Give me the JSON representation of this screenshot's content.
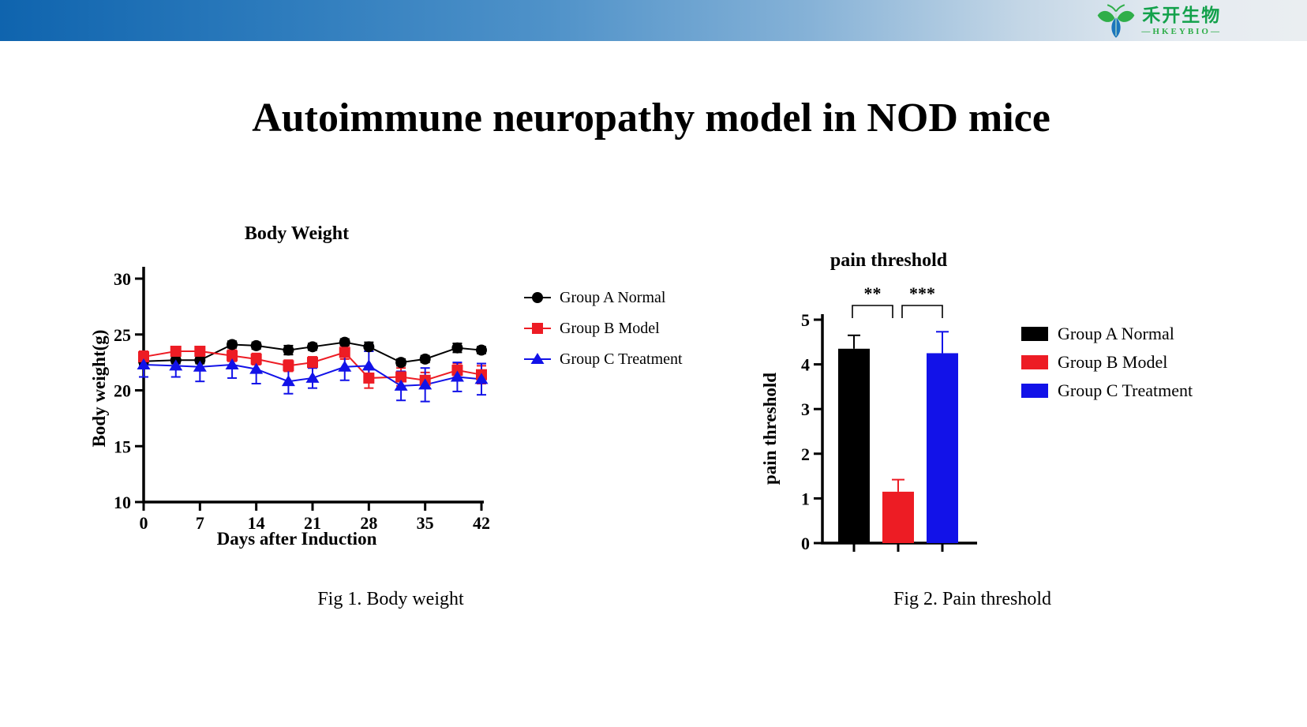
{
  "header": {
    "brand_cn": "禾开生物",
    "brand_en": "—HKEYBIO—"
  },
  "title": "Autoimmune neuropathy model in NOD mice",
  "captions": {
    "fig1": "Fig 1. Body weight",
    "fig2": "Fig 2. Pain threshold"
  },
  "colors": {
    "group_a": "#000000",
    "group_b": "#ed1c24",
    "group_c": "#1212e8",
    "logo_green": "#2fae49",
    "logo_blue": "#1b75bc",
    "header_gradient_start": "#0f64ae",
    "header_gradient_end": "#eaeef1"
  },
  "chart_data": [
    {
      "type": "line",
      "title": "Body Weight",
      "xlabel": "Days after Induction",
      "ylabel": "Body weight(g)",
      "xlim": [
        0,
        42
      ],
      "ylim": [
        10,
        30
      ],
      "xticks": [
        0,
        7,
        14,
        21,
        28,
        35,
        42
      ],
      "yticks": [
        10,
        15,
        20,
        25,
        30
      ],
      "grid": false,
      "legend_position": "right",
      "x": [
        0,
        4,
        7,
        11,
        14,
        18,
        21,
        25,
        28,
        32,
        35,
        39,
        42
      ],
      "series": [
        {
          "name": "Group A Normal",
          "color": "#000000",
          "marker": "circle",
          "values": [
            22.6,
            22.7,
            22.7,
            24.1,
            24.0,
            23.6,
            23.9,
            24.3,
            23.9,
            22.5,
            22.8,
            23.8,
            23.6
          ],
          "errors": [
            0.3,
            0.3,
            0.3,
            0.3,
            0.3,
            0.4,
            0.3,
            0.3,
            0.4,
            0.3,
            0.3,
            0.4,
            0.3
          ]
        },
        {
          "name": "Group B Model",
          "color": "#ed1c24",
          "marker": "square",
          "values": [
            23.0,
            23.5,
            23.5,
            23.1,
            22.8,
            22.2,
            22.5,
            23.4,
            21.1,
            21.2,
            20.9,
            21.8,
            21.4
          ],
          "errors": [
            0.5,
            0.4,
            0.4,
            0.5,
            0.5,
            0.5,
            0.5,
            0.6,
            0.9,
            0.8,
            0.7,
            0.6,
            0.8
          ]
        },
        {
          "name": "Group C Treatment",
          "color": "#1212e8",
          "marker": "triangle",
          "values": [
            22.3,
            22.2,
            22.1,
            22.3,
            21.9,
            20.8,
            21.1,
            22.1,
            22.2,
            20.4,
            20.5,
            21.2,
            21.0
          ],
          "errors": [
            1.1,
            1.0,
            1.3,
            1.2,
            1.3,
            1.1,
            0.9,
            1.2,
            1.3,
            1.3,
            1.5,
            1.3,
            1.4
          ]
        }
      ]
    },
    {
      "type": "bar",
      "title": "pain threshold",
      "xlabel": "",
      "ylabel": "pain threshold",
      "ylim": [
        0,
        5
      ],
      "yticks": [
        0,
        1,
        2,
        3,
        4,
        5
      ],
      "grid": false,
      "legend_position": "right",
      "categories": [
        "Group A Normal",
        "Group B Model",
        "Group C Treatment"
      ],
      "values": [
        4.35,
        1.15,
        4.25
      ],
      "errors": [
        0.3,
        0.27,
        0.48
      ],
      "colors": [
        "#000000",
        "#ed1c24",
        "#1212e8"
      ],
      "significance": [
        {
          "between": [
            0,
            1
          ],
          "label": "**"
        },
        {
          "between": [
            1,
            2
          ],
          "label": "***"
        }
      ]
    }
  ]
}
